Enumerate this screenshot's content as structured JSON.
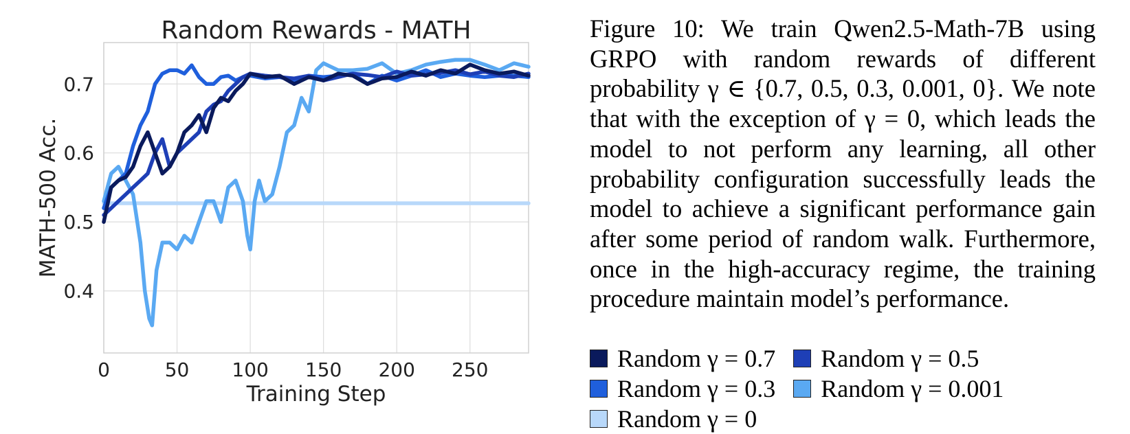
{
  "caption": {
    "text": "Figure 10: We train Qwen2.5-Math-7B using GRPO with random rewards of different probability γ ∈ {0.7, 0.5, 0.3, 0.001, 0}. We note that with the exception of γ = 0, which leads the model to not perform any learning, all other probability configuration successfully leads the model to achieve a significant performance gain after some period of random walk. Furthermore, once in the high-accuracy regime, the training procedure maintain model’s performance."
  },
  "chart_data": {
    "type": "line",
    "title": "Random Rewards - MATH",
    "xlabel": "Training Step",
    "ylabel": "MATH-500 Acc.",
    "xlim": [
      0,
      290
    ],
    "ylim": [
      0.31,
      0.76
    ],
    "xticks": [
      0,
      50,
      100,
      150,
      200,
      250
    ],
    "yticks": [
      0.4,
      0.5,
      0.6,
      0.7
    ],
    "grid": true,
    "legend_position": "below-right",
    "series": [
      {
        "name": "Random γ = 0.7",
        "color": "#0a1a5c",
        "x": [
          0,
          5,
          10,
          15,
          20,
          25,
          30,
          35,
          40,
          45,
          50,
          55,
          60,
          65,
          70,
          75,
          80,
          85,
          90,
          95,
          100,
          110,
          120,
          130,
          140,
          150,
          160,
          170,
          180,
          190,
          200,
          210,
          220,
          230,
          240,
          250,
          260,
          270,
          280,
          290
        ],
        "y": [
          0.5,
          0.55,
          0.56,
          0.565,
          0.58,
          0.61,
          0.63,
          0.6,
          0.57,
          0.58,
          0.6,
          0.63,
          0.64,
          0.655,
          0.63,
          0.665,
          0.68,
          0.675,
          0.69,
          0.7,
          0.715,
          0.71,
          0.712,
          0.7,
          0.71,
          0.705,
          0.715,
          0.712,
          0.7,
          0.708,
          0.71,
          0.718,
          0.712,
          0.72,
          0.715,
          0.728,
          0.72,
          0.715,
          0.718,
          0.712
        ]
      },
      {
        "name": "Random γ = 0.5",
        "color": "#1e3fb6",
        "x": [
          0,
          5,
          10,
          15,
          20,
          25,
          30,
          35,
          40,
          45,
          50,
          55,
          60,
          65,
          70,
          75,
          80,
          85,
          90,
          95,
          100,
          110,
          120,
          130,
          140,
          150,
          160,
          170,
          180,
          190,
          200,
          210,
          220,
          230,
          240,
          250,
          260,
          270,
          280,
          290
        ],
        "y": [
          0.51,
          0.52,
          0.53,
          0.54,
          0.55,
          0.56,
          0.57,
          0.6,
          0.62,
          0.58,
          0.6,
          0.61,
          0.62,
          0.63,
          0.66,
          0.67,
          0.675,
          0.69,
          0.7,
          0.71,
          0.715,
          0.712,
          0.71,
          0.708,
          0.712,
          0.705,
          0.71,
          0.715,
          0.713,
          0.71,
          0.718,
          0.712,
          0.714,
          0.716,
          0.72,
          0.714,
          0.718,
          0.712,
          0.71,
          0.715
        ]
      },
      {
        "name": "Random γ = 0.3",
        "color": "#1f5fdc",
        "x": [
          0,
          5,
          10,
          15,
          20,
          25,
          30,
          35,
          40,
          45,
          50,
          55,
          60,
          65,
          70,
          75,
          80,
          85,
          90,
          95,
          100,
          110,
          120,
          130,
          140,
          150,
          160,
          170,
          180,
          190,
          200,
          210,
          220,
          230,
          240,
          250,
          260,
          270,
          280,
          290
        ],
        "y": [
          0.52,
          0.55,
          0.56,
          0.57,
          0.61,
          0.64,
          0.66,
          0.7,
          0.715,
          0.72,
          0.72,
          0.715,
          0.727,
          0.71,
          0.7,
          0.7,
          0.71,
          0.712,
          0.705,
          0.71,
          0.712,
          0.708,
          0.71,
          0.705,
          0.712,
          0.71,
          0.712,
          0.715,
          0.7,
          0.712,
          0.705,
          0.712,
          0.72,
          0.71,
          0.715,
          0.712,
          0.71,
          0.712,
          0.712,
          0.71
        ]
      },
      {
        "name": "Random γ = 0.001",
        "color": "#5aa9f2",
        "x": [
          0,
          5,
          10,
          15,
          20,
          25,
          28,
          31,
          33,
          36,
          40,
          45,
          50,
          55,
          60,
          65,
          70,
          75,
          80,
          85,
          90,
          95,
          98,
          100,
          103,
          106,
          110,
          115,
          120,
          125,
          130,
          135,
          140,
          145,
          150,
          155,
          160,
          170,
          180,
          190,
          200,
          210,
          220,
          230,
          240,
          250,
          260,
          270,
          280,
          290
        ],
        "y": [
          0.53,
          0.57,
          0.58,
          0.56,
          0.54,
          0.47,
          0.4,
          0.36,
          0.35,
          0.43,
          0.47,
          0.47,
          0.46,
          0.48,
          0.47,
          0.5,
          0.53,
          0.53,
          0.5,
          0.55,
          0.56,
          0.53,
          0.48,
          0.46,
          0.53,
          0.56,
          0.53,
          0.54,
          0.58,
          0.63,
          0.64,
          0.68,
          0.66,
          0.72,
          0.73,
          0.725,
          0.72,
          0.72,
          0.722,
          0.73,
          0.715,
          0.72,
          0.728,
          0.732,
          0.735,
          0.735,
          0.728,
          0.72,
          0.73,
          0.725
        ]
      },
      {
        "name": "Random γ = 0",
        "color": "#b8d8fa",
        "x": [
          0,
          290
        ],
        "y": [
          0.527,
          0.527
        ]
      }
    ]
  }
}
